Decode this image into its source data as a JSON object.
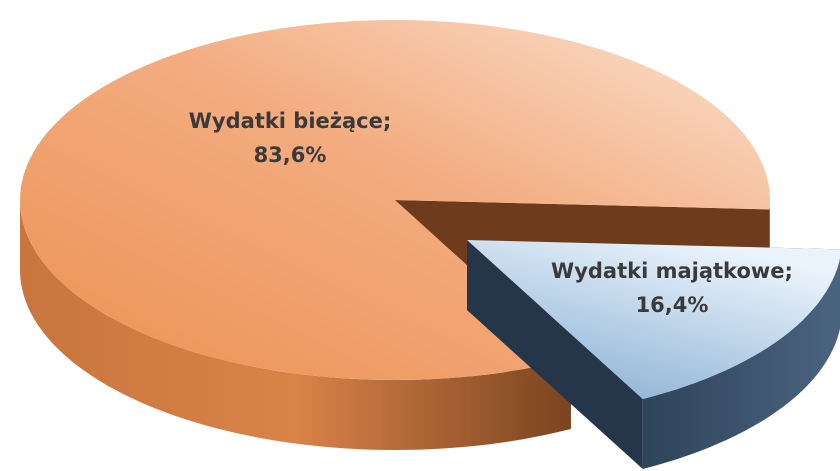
{
  "chart_data": {
    "type": "pie3d",
    "categories": [
      "Wydatki bieżące",
      "Wydatki majątkowe"
    ],
    "values": [
      83.6,
      16.4
    ],
    "value_labels": [
      "83,6%",
      "16,4%"
    ],
    "label_separator": ";",
    "colors": [
      "#f0a06c",
      "#a9cbe9"
    ],
    "exploded": [
      false,
      true
    ]
  }
}
